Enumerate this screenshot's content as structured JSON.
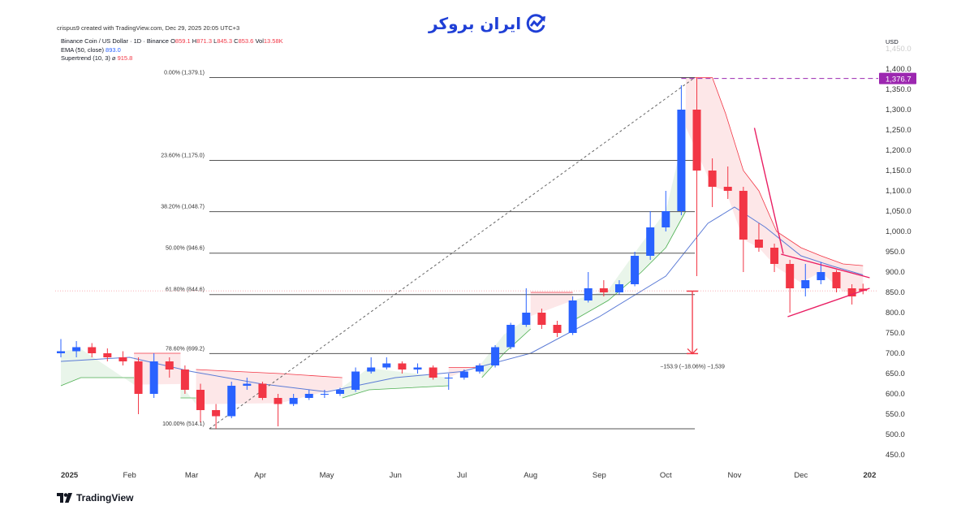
{
  "logo": {
    "text": "ایران بروکر",
    "icon": "chart-trend-circle-icon",
    "color": "#1f3fd6"
  },
  "credit": "crispus9 created with TradingView.com, Dec 29, 2025 20:05 UTC+3",
  "legend": {
    "symbol": "Binance Coin / US Dollar · 1D · Binance",
    "o_label": "O",
    "o": "859.1",
    "h_label": "H",
    "h": "871.3",
    "l_label": "L",
    "l": "845.3",
    "c_label": "C",
    "c": "853.6",
    "vol_label": "Vol",
    "vol": "13.58K",
    "ema_label": "EMA (50, close)",
    "ema": "893.0",
    "st_label": "Supertrend (10, 3)",
    "st_symbol": "⌀",
    "st": "915.8"
  },
  "currency": "USD",
  "footer_brand": "TradingView",
  "colors": {
    "up": "#2962ff",
    "down": "#f23645",
    "ema": "#5b7bd6",
    "st_up": "#4caf50",
    "st_down": "#f23645",
    "marker": "#9c27b0",
    "trend": "#e91e63"
  },
  "chart_data": {
    "type": "candlestick",
    "title": "",
    "ylim": [
      450,
      1450
    ],
    "xlim": [
      "2025-01-01",
      "2026-01-02"
    ],
    "y_ticks": [
      "450.0",
      "500.0",
      "550.0",
      "600.0",
      "650.0",
      "700.0",
      "750.0",
      "800.0",
      "850.0",
      "900.0",
      "950.0",
      "1,000.0",
      "1,050.0",
      "1,100.0",
      "1,150.0",
      "1,200.0",
      "1,250.0",
      "1,300.0",
      "1,350.0",
      "1,400.0",
      "1,450.0"
    ],
    "y_tick_values": [
      450,
      500,
      550,
      600,
      650,
      700,
      750,
      800,
      850,
      900,
      950,
      1000,
      1050,
      1100,
      1150,
      1200,
      1250,
      1300,
      1350,
      1400,
      1450
    ],
    "x_ticks": [
      {
        "label": "2025",
        "date": "2025-01-01",
        "bold": true
      },
      {
        "label": "Feb",
        "date": "2025-02-01"
      },
      {
        "label": "Mar",
        "date": "2025-03-01"
      },
      {
        "label": "Apr",
        "date": "2025-04-01"
      },
      {
        "label": "May",
        "date": "2025-05-01"
      },
      {
        "label": "Jun",
        "date": "2025-06-01"
      },
      {
        "label": "Jul",
        "date": "2025-07-01"
      },
      {
        "label": "Aug",
        "date": "2025-08-01"
      },
      {
        "label": "Sep",
        "date": "2025-09-01"
      },
      {
        "label": "Oct",
        "date": "2025-10-01"
      },
      {
        "label": "Nov",
        "date": "2025-11-01"
      },
      {
        "label": "Dec",
        "date": "2025-12-01"
      },
      {
        "label": "202",
        "date": "2026-01-01",
        "bold": true
      }
    ],
    "candles_approx_weekly": [
      [
        "2025-01-01",
        700,
        735,
        690,
        705
      ],
      [
        "2025-01-08",
        705,
        730,
        690,
        715
      ],
      [
        "2025-01-15",
        715,
        725,
        690,
        700
      ],
      [
        "2025-01-22",
        700,
        712,
        680,
        690
      ],
      [
        "2025-01-29",
        690,
        705,
        670,
        680
      ],
      [
        "2025-02-05",
        680,
        690,
        550,
        600
      ],
      [
        "2025-02-12",
        600,
        700,
        590,
        680
      ],
      [
        "2025-02-19",
        680,
        690,
        640,
        660
      ],
      [
        "2025-02-26",
        660,
        670,
        600,
        610
      ],
      [
        "2025-03-05",
        610,
        625,
        530,
        560
      ],
      [
        "2025-03-12",
        560,
        575,
        514.1,
        545
      ],
      [
        "2025-03-19",
        545,
        630,
        540,
        620
      ],
      [
        "2025-03-26",
        620,
        640,
        610,
        625
      ],
      [
        "2025-04-02",
        625,
        630,
        585,
        590
      ],
      [
        "2025-04-09",
        590,
        600,
        520,
        575
      ],
      [
        "2025-04-16",
        575,
        600,
        570,
        590
      ],
      [
        "2025-04-23",
        590,
        610,
        585,
        600
      ],
      [
        "2025-04-30",
        600,
        610,
        590,
        600
      ],
      [
        "2025-05-07",
        600,
        615,
        595,
        610
      ],
      [
        "2025-05-14",
        610,
        665,
        605,
        655
      ],
      [
        "2025-05-21",
        655,
        690,
        650,
        665
      ],
      [
        "2025-05-28",
        665,
        690,
        660,
        675
      ],
      [
        "2025-06-04",
        675,
        680,
        650,
        660
      ],
      [
        "2025-06-11",
        660,
        675,
        650,
        665
      ],
      [
        "2025-06-18",
        665,
        670,
        635,
        640
      ],
      [
        "2025-06-25",
        640,
        650,
        610,
        640
      ],
      [
        "2025-07-02",
        640,
        660,
        635,
        655
      ],
      [
        "2025-07-09",
        655,
        675,
        650,
        670
      ],
      [
        "2025-07-16",
        670,
        720,
        665,
        715
      ],
      [
        "2025-07-23",
        715,
        775,
        710,
        770
      ],
      [
        "2025-07-30",
        770,
        860,
        765,
        800
      ],
      [
        "2025-08-06",
        800,
        810,
        760,
        770
      ],
      [
        "2025-08-13",
        770,
        780,
        740,
        750
      ],
      [
        "2025-08-20",
        750,
        840,
        745,
        830
      ],
      [
        "2025-08-27",
        830,
        900,
        825,
        860
      ],
      [
        "2025-09-03",
        860,
        880,
        840,
        850
      ],
      [
        "2025-09-10",
        850,
        880,
        845,
        870
      ],
      [
        "2025-09-17",
        870,
        950,
        865,
        940
      ],
      [
        "2025-09-24",
        940,
        1050,
        930,
        1010
      ],
      [
        "2025-10-01",
        1010,
        1100,
        1000,
        1050
      ],
      [
        "2025-10-08",
        1050,
        1360,
        1040,
        1300
      ],
      [
        "2025-10-15",
        1300,
        1379.1,
        890,
        1150
      ],
      [
        "2025-10-22",
        1150,
        1180,
        1060,
        1110
      ],
      [
        "2025-10-29",
        1110,
        1160,
        1080,
        1100
      ],
      [
        "2025-11-05",
        1100,
        1110,
        900,
        980
      ],
      [
        "2025-11-12",
        980,
        1020,
        950,
        960
      ],
      [
        "2025-11-19",
        960,
        970,
        900,
        920
      ],
      [
        "2025-11-26",
        920,
        930,
        800,
        860
      ],
      [
        "2025-12-03",
        860,
        920,
        840,
        880
      ],
      [
        "2025-12-10",
        880,
        925,
        870,
        900
      ],
      [
        "2025-12-17",
        900,
        905,
        850,
        860
      ],
      [
        "2025-12-24",
        860,
        870,
        820,
        840
      ],
      [
        "2025-12-29",
        859.1,
        871.3,
        845.3,
        853.6
      ]
    ],
    "ema_50": [
      [
        "2025-01-01",
        680
      ],
      [
        "2025-02-01",
        690
      ],
      [
        "2025-03-01",
        655
      ],
      [
        "2025-04-01",
        625
      ],
      [
        "2025-05-01",
        605
      ],
      [
        "2025-06-01",
        640
      ],
      [
        "2025-07-01",
        655
      ],
      [
        "2025-08-01",
        700
      ],
      [
        "2025-09-01",
        790
      ],
      [
        "2025-10-01",
        890
      ],
      [
        "2025-10-20",
        1020
      ],
      [
        "2025-11-01",
        1060
      ],
      [
        "2025-11-15",
        1010
      ],
      [
        "2025-12-01",
        940
      ],
      [
        "2025-12-15",
        915
      ],
      [
        "2025-12-29",
        893
      ]
    ],
    "supertrend": [
      {
        "dir": "up",
        "points": [
          [
            "2025-01-01",
            620
          ],
          [
            "2025-01-10",
            640
          ],
          [
            "2025-02-03",
            640
          ]
        ]
      },
      {
        "dir": "down",
        "points": [
          [
            "2025-02-03",
            700
          ],
          [
            "2025-02-24",
            700
          ]
        ]
      },
      {
        "dir": "up",
        "points": [
          [
            "2025-02-24",
            590
          ],
          [
            "2025-03-03",
            590
          ]
        ]
      },
      {
        "dir": "down",
        "points": [
          [
            "2025-03-03",
            660
          ],
          [
            "2025-04-10",
            650
          ],
          [
            "2025-05-08",
            640
          ]
        ]
      },
      {
        "dir": "up",
        "points": [
          [
            "2025-05-08",
            590
          ],
          [
            "2025-05-20",
            610
          ],
          [
            "2025-06-25",
            620
          ]
        ]
      },
      {
        "dir": "down",
        "points": [
          [
            "2025-06-25",
            665
          ],
          [
            "2025-07-10",
            665
          ]
        ]
      },
      {
        "dir": "up",
        "points": [
          [
            "2025-07-10",
            640
          ],
          [
            "2025-07-20",
            700
          ],
          [
            "2025-08-01",
            760
          ]
        ]
      },
      {
        "dir": "down",
        "points": [
          [
            "2025-08-01",
            850
          ],
          [
            "2025-08-20",
            850
          ]
        ]
      },
      {
        "dir": "up",
        "points": [
          [
            "2025-08-20",
            780
          ],
          [
            "2025-09-05",
            830
          ],
          [
            "2025-09-20",
            900
          ],
          [
            "2025-10-01",
            960
          ],
          [
            "2025-10-10",
            1050
          ]
        ]
      },
      {
        "dir": "down",
        "points": [
          [
            "2025-10-10",
            1379
          ],
          [
            "2025-10-22",
            1379
          ],
          [
            "2025-10-28",
            1290
          ],
          [
            "2025-11-05",
            1150
          ],
          [
            "2025-11-12",
            1100
          ],
          [
            "2025-11-20",
            1000
          ],
          [
            "2025-12-01",
            960
          ],
          [
            "2025-12-10",
            940
          ],
          [
            "2025-12-20",
            920
          ],
          [
            "2025-12-29",
            915.8
          ]
        ]
      }
    ],
    "fibonacci": {
      "from": [
        "2025-03-09",
        514.1
      ],
      "to": [
        "2025-10-13",
        1379.1
      ],
      "levels": [
        {
          "label": "0.00% (1,379.1)",
          "value": 1379.1
        },
        {
          "label": "23.60% (1,175.0)",
          "value": 1175.0
        },
        {
          "label": "38.20% (1,048.7)",
          "value": 1048.7
        },
        {
          "label": "50.00% (946.6)",
          "value": 946.6
        },
        {
          "label": "61.80% (844.6)",
          "value": 844.6
        },
        {
          "label": "78.60% (699.2)",
          "value": 699.2
        },
        {
          "label": "100.00% (514.1)",
          "value": 514.1
        }
      ]
    },
    "measure": {
      "date": "2025-10-13",
      "from": 853,
      "to": 699.2,
      "label": "−153.9 (−18.06%) −1,539"
    },
    "price_marker": {
      "value": 1376.7,
      "label": "1,376.7",
      "from_date": "2025-10-08"
    },
    "last_price": 853.6,
    "trendlines": [
      {
        "name": "steep-downtrend",
        "from": [
          "2025-11-10",
          1255
        ],
        "to": [
          "2025-11-23",
          945
        ]
      },
      {
        "name": "triangle-upper",
        "from": [
          "2025-11-22",
          944
        ],
        "to": [
          "2026-01-01",
          886
        ]
      },
      {
        "name": "triangle-lower",
        "from": [
          "2025-11-25",
          790
        ],
        "to": [
          "2026-01-01",
          860
        ]
      }
    ]
  }
}
